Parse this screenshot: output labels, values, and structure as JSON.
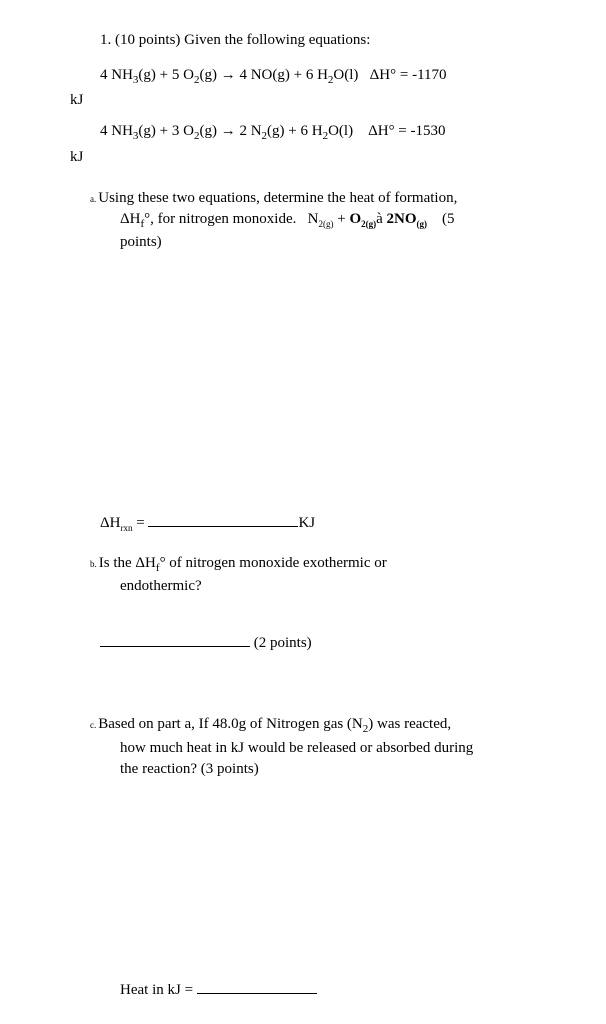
{
  "header": {
    "text": "1. (10 points) Given the following equations:"
  },
  "equation1": {
    "formula": "4 NH₃(g) + 5 O₂(g) → 4 NO(g) + 6 H₂O(l)   ΔH° = -1170",
    "unit": "kJ"
  },
  "equation2": {
    "formula": "4 NH₃(g) + 3 O₂(g) → 2 N₂(g) + 6 H₂O(l)    ΔH° = -1530",
    "unit": "kJ"
  },
  "part_a": {
    "label": "a.",
    "line1": "Using these two equations, determine the heat of formation,",
    "line2_pre": "ΔH",
    "line2_sub": "f",
    "line2_sup": "°",
    "line2_mid": ", for nitrogen monoxide.   N",
    "line2_n2g": "2(g)",
    "line2_plus": " + O",
    "line2_o2g": "2(g)",
    "line2_arrow": "à 2NO",
    "line2_nog": "(g)",
    "line2_pts": "    (5",
    "line3": "points)",
    "answer_label_pre": "ΔH",
    "answer_label_sub": "rxn",
    "answer_label_eq": " = ",
    "answer_unit": "KJ"
  },
  "part_b": {
    "label": "b.",
    "line1_pre": "Is the ΔH",
    "line1_sub": "f",
    "line1_sup": "°",
    "line1_post": " of nitrogen monoxide exothermic or",
    "line2": "endothermic?",
    "points": " (2 points)"
  },
  "part_c": {
    "label": "c.",
    "line1": "Based on part a, If 48.0g of Nitrogen gas (N₂) was reacted,",
    "line2": "how much heat in kJ would be released or absorbed during",
    "line3": "the reaction?  (3 points)",
    "answer_label": "Heat in kJ = "
  }
}
